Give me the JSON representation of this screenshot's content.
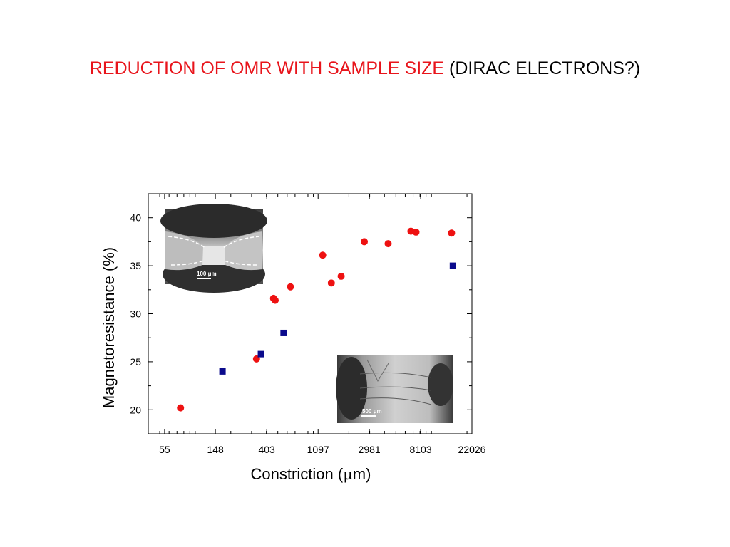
{
  "slide": {
    "title_red": "REDUCTION OF OMR WITH SAMPLE SIZE",
    "title_black": "(DIRAC ELECTRONS?)"
  },
  "colors": {
    "title_red": "#e8141b",
    "series_circles": "#ee1111",
    "series_squares": "#0a0a8c"
  },
  "chart_data": {
    "type": "scatter",
    "xlabel_prefix": "Constriction (",
    "xlabel_mu": "μ",
    "xlabel_suffix": "m)",
    "ylabel": "Magnetoresistance (%)",
    "x_scale": "log",
    "xlim": [
      40,
      22026
    ],
    "ylim": [
      17.5,
      42.5
    ],
    "x_ticks": [
      55,
      148,
      403,
      1097,
      2981,
      8103,
      22026
    ],
    "x_tick_labels": [
      "55",
      "148",
      "403",
      "1097",
      "2981",
      "8103",
      "22026"
    ],
    "y_ticks": [
      20,
      25,
      30,
      35,
      40
    ],
    "y_tick_labels": [
      "20",
      "25",
      "30",
      "35",
      "40"
    ],
    "grid": false,
    "series": [
      {
        "marker": "circle",
        "color": "#ee1111",
        "points": [
          {
            "x": 75,
            "y": 20.2
          },
          {
            "x": 330,
            "y": 25.3
          },
          {
            "x": 460,
            "y": 31.6
          },
          {
            "x": 475,
            "y": 31.4
          },
          {
            "x": 640,
            "y": 32.8
          },
          {
            "x": 1200,
            "y": 36.1
          },
          {
            "x": 1420,
            "y": 33.2
          },
          {
            "x": 1720,
            "y": 33.9
          },
          {
            "x": 2700,
            "y": 37.5
          },
          {
            "x": 4300,
            "y": 37.3
          },
          {
            "x": 6700,
            "y": 38.6
          },
          {
            "x": 7400,
            "y": 38.5
          },
          {
            "x": 14800,
            "y": 38.4
          }
        ]
      },
      {
        "marker": "square",
        "color": "#0a0a8c",
        "points": [
          {
            "x": 170,
            "y": 24.0
          },
          {
            "x": 360,
            "y": 25.8
          },
          {
            "x": 560,
            "y": 28.0
          },
          {
            "x": 15200,
            "y": 35.0
          }
        ]
      }
    ]
  },
  "insets": [
    {
      "scale_label": "100 μm"
    },
    {
      "scale_label": "500 μm"
    }
  ]
}
